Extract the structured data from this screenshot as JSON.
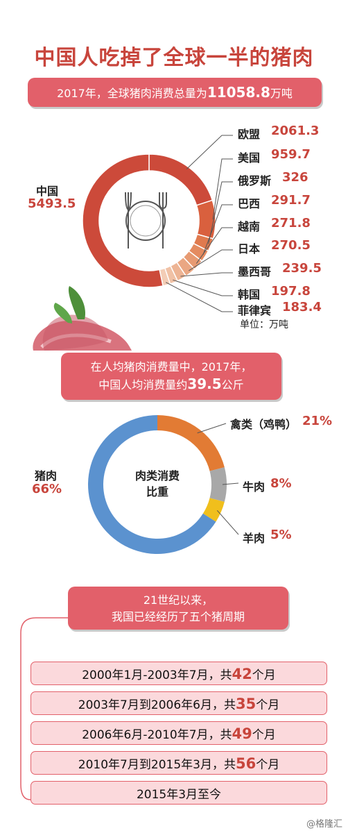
{
  "title": "中国人吃掉了全球一半的猪肉",
  "banner1": {
    "pre": "2017年，全球猪肉消费总量为",
    "value": "11058.8",
    "post": "万吨"
  },
  "banner2": {
    "line1": "在人均猪肉消费量中，2017年，",
    "line2_pre": "中国人均消费量约",
    "line2_value": "39.5",
    "line2_post": "公斤"
  },
  "banner3": {
    "line1": "21世纪以来，",
    "line2": "我国已经经历了五个猪周期"
  },
  "unit_label": "单位：万吨",
  "watermark": "@格隆汇",
  "donut2_center": {
    "line1": "肉类消费",
    "line2": "比重"
  },
  "colors": {
    "accent_red": "#c8453c",
    "banner_pink": "#e2606a",
    "pork_blue": "#5b92cf",
    "poultry_orange": "#e27b34",
    "beef_grey": "#a8a8a8",
    "mutton_yellow": "#f0bf1c"
  },
  "chart_data": [
    {
      "type": "pie",
      "title": "",
      "unit": "万吨",
      "slices": [
        {
          "label": "中国",
          "value": 5493.5
        },
        {
          "label": "欧盟",
          "value": 2061.3
        },
        {
          "label": "美国",
          "value": 959.7
        },
        {
          "label": "俄罗斯",
          "value": 326
        },
        {
          "label": "巴西",
          "value": 291.7
        },
        {
          "label": "越南",
          "value": 271.8
        },
        {
          "label": "日本",
          "value": 270.5
        },
        {
          "label": "墨西哥",
          "value": 239.5
        },
        {
          "label": "韩国",
          "value": 197.8
        },
        {
          "label": "菲律宾",
          "value": 183.4
        }
      ]
    },
    {
      "type": "pie",
      "title": "",
      "slices": [
        {
          "label": "猪肉",
          "value": 66,
          "display": "66%",
          "color": "#5b92cf"
        },
        {
          "label": "禽类（鸡鸭）",
          "value": 21,
          "display": "21%",
          "color": "#e27b34"
        },
        {
          "label": "牛肉",
          "value": 8,
          "display": "8%",
          "color": "#a8a8a8"
        },
        {
          "label": "羊肉",
          "value": 5,
          "display": "5%",
          "color": "#f0bf1c"
        }
      ]
    }
  ],
  "cycles": [
    {
      "pre": "2000年1月-2003年7月，共",
      "num": "42",
      "post": "个月"
    },
    {
      "pre": "2003年7月到2006年6月，共",
      "num": "35",
      "post": "个月"
    },
    {
      "pre": "2006年6月-2010年7月，共",
      "num": "49",
      "post": "个月"
    },
    {
      "pre": "2010年7月到2015年3月，共",
      "num": "56",
      "post": "个月"
    },
    {
      "pre": "2015年3月至今",
      "num": "",
      "post": ""
    }
  ]
}
